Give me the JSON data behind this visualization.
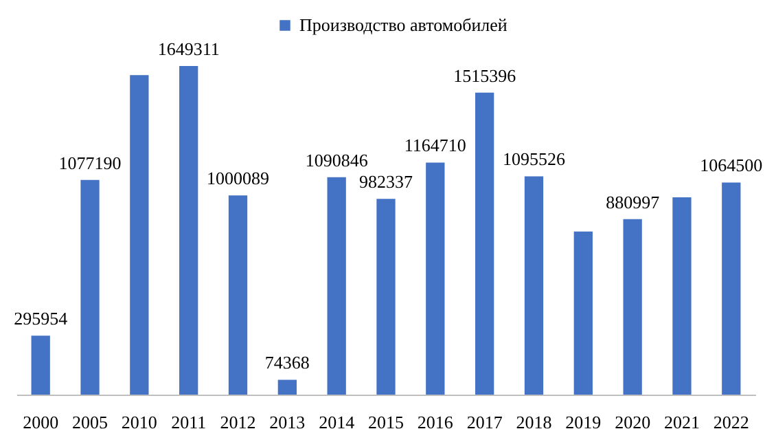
{
  "chart_data": {
    "type": "bar",
    "categories": [
      "2000",
      "2005",
      "2010",
      "2011",
      "2012",
      "2013",
      "2014",
      "2015",
      "2016",
      "2017",
      "2018",
      "2019",
      "2020",
      "2021",
      "2022"
    ],
    "series": [
      {
        "name": "Производство автомобилей",
        "color": "#4472c4",
        "values": [
          295954,
          1077190,
          1604000,
          1649311,
          1000089,
          74368,
          1090846,
          982337,
          1164710,
          1515396,
          1095526,
          819000,
          880997,
          990000,
          1064500
        ],
        "value_labels": [
          "295954",
          "1077190",
          null,
          "1649311",
          "1000089",
          "74368",
          "1090846",
          "982337",
          "1164710",
          "1515396",
          "1095526",
          null,
          "880997",
          null,
          "1064500"
        ]
      }
    ],
    "legend": "top",
    "grid": false
  }
}
